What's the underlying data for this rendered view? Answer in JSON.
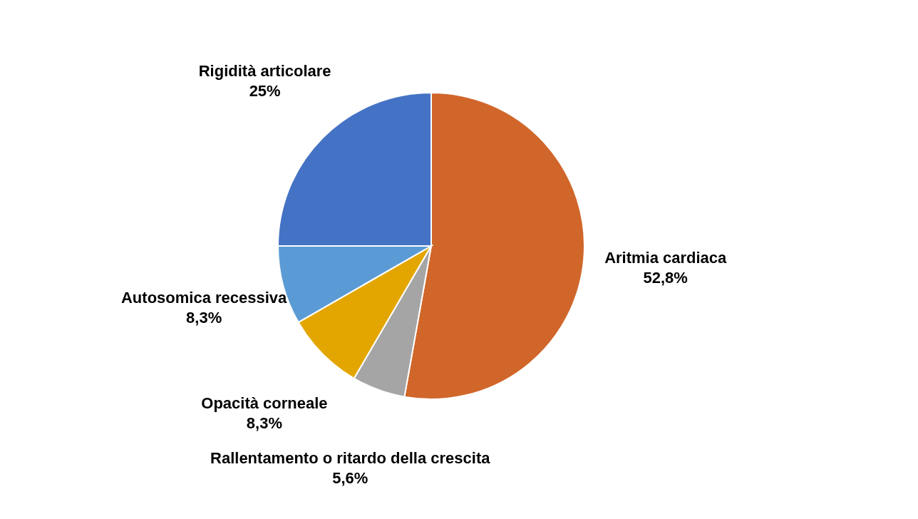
{
  "chart_data": {
    "type": "pie",
    "categories": [
      "Aritmia cardiaca",
      "Rallentamento o ritardo della crescita",
      "Opacità corneale",
      "Autosomica recessiva",
      "Rigidità articolare"
    ],
    "values": [
      52.8,
      5.6,
      8.3,
      8.3,
      25
    ],
    "value_labels": [
      "52,8%",
      "5,6%",
      "8,3%",
      "8,3%",
      "25%"
    ],
    "colors": [
      "#d0662a",
      "#a5a5a5",
      "#e3a600",
      "#5b9bd5",
      "#4472c4"
    ],
    "legend": false
  }
}
